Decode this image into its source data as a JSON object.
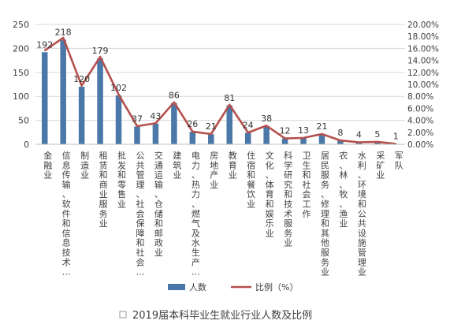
{
  "chart_data": {
    "type": "bar",
    "categories": [
      "金融业",
      "信息传输、软件和信息技术…",
      "制造业",
      "租赁和商业服务业",
      "批发和零售业",
      "公共管理、社会保障和社会…",
      "交通运输、仓储和邮政业",
      "建筑业",
      "电力、热力、燃气及水生产…",
      "房地产业",
      "教育业",
      "住宿和餐饮业",
      "文化、体育和娱乐业",
      "科学研究和技术服务业",
      "卫生和社会工作",
      "居民服务、修理和其他服务业",
      "农、林、牧、渔业",
      "水利、环境和公共设施管理业",
      "采矿业",
      "军队"
    ],
    "series": [
      {
        "name": "人数",
        "type": "bar",
        "axis": "left",
        "values": [
          192,
          218,
          120,
          179,
          102,
          37,
          43,
          86,
          26,
          21,
          81,
          24,
          38,
          12,
          13,
          21,
          8,
          4,
          5,
          1
        ]
      },
      {
        "name": "比例（%）",
        "type": "line",
        "axis": "right",
        "values": [
          15.65,
          17.77,
          9.78,
          14.59,
          8.31,
          3.02,
          3.5,
          7.01,
          2.12,
          1.71,
          6.6,
          1.96,
          3.1,
          0.98,
          1.06,
          1.71,
          0.65,
          0.33,
          0.41,
          0.08
        ]
      }
    ],
    "y_left": {
      "ylim": [
        0,
        250
      ],
      "ticks": [
        "0",
        "50",
        "100",
        "150",
        "200",
        "250"
      ]
    },
    "y_right": {
      "ylim": [
        0,
        20
      ],
      "ticks": [
        "0.00%",
        "2.00%",
        "4.00%",
        "6.00%",
        "8.00%",
        "10.00%",
        "12.00%",
        "14.00%",
        "16.00%",
        "18.00%",
        "20.00%"
      ]
    },
    "grid": true,
    "legend_position": "bottom",
    "title": "2019届本科毕业生就业行业人数及比例",
    "colors": {
      "bar": "#4a78a8",
      "line": "#b5504d",
      "grid": "#d9d9d9",
      "text": "#404040"
    }
  }
}
